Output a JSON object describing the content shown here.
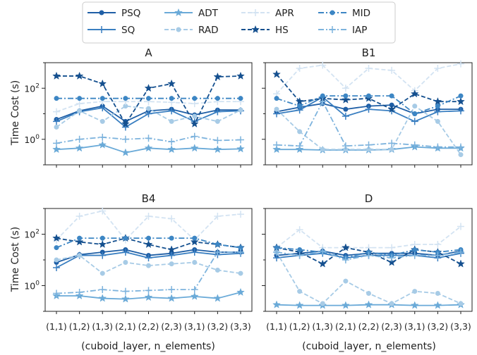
{
  "chart_data": {
    "type": "line",
    "yscale": "log",
    "ylim": [
      0.1,
      1000
    ],
    "y_tick_labels": [
      "10^0",
      "10^2"
    ],
    "ylabel": "Time Cost (s)",
    "xlabel": "(cuboid_layer, n_elements)",
    "categories": [
      "(1,1)",
      "(1,2)",
      "(1,3)",
      "(2,1)",
      "(2,2)",
      "(2,3)",
      "(3,1)",
      "(3,2)",
      "(3,3)"
    ],
    "legend_placement": "top-center",
    "legend": [
      "PSQ",
      "SQ",
      "ADT",
      "RAD",
      "APR",
      "HS",
      "MID",
      "IAP"
    ],
    "series_styles": [
      {
        "name": "PSQ",
        "color": "#1f5fa6",
        "dash": "solid",
        "marker": "circle"
      },
      {
        "name": "SQ",
        "color": "#3a7fc1",
        "dash": "solid",
        "marker": "plus"
      },
      {
        "name": "ADT",
        "color": "#6aaad8",
        "dash": "solid",
        "marker": "star"
      },
      {
        "name": "RAD",
        "color": "#a7cbe6",
        "dash": "dashed",
        "marker": "circle"
      },
      {
        "name": "APR",
        "color": "#d3e3f2",
        "dash": "dashed",
        "marker": "plus"
      },
      {
        "name": "HS",
        "color": "#15508f",
        "dash": "dashed",
        "marker": "star"
      },
      {
        "name": "MID",
        "color": "#3d86c4",
        "dash": "dashdot",
        "marker": "circle"
      },
      {
        "name": "IAP",
        "color": "#7db3dd",
        "dash": "dashdot",
        "marker": "plus"
      }
    ],
    "panels": [
      {
        "title": "A",
        "series": [
          {
            "name": "PSQ",
            "values": [
              6,
              13,
              20,
              5,
              13,
              15,
              9,
              14,
              14
            ]
          },
          {
            "name": "SQ",
            "values": [
              5,
              12,
              17,
              3,
              10,
              13,
              5,
              12,
              13
            ]
          },
          {
            "name": "ADT",
            "values": [
              0.4,
              0.45,
              0.6,
              0.3,
              0.45,
              0.4,
              0.45,
              0.4,
              0.42
            ]
          },
          {
            "name": "RAD",
            "values": [
              3,
              13,
              5,
              20,
              16,
              5,
              8,
              5,
              14
            ]
          },
          {
            "name": "APR",
            "values": [
              12,
              25,
              30,
              30,
              30,
              28,
              25,
              30,
              30
            ]
          },
          {
            "name": "HS",
            "values": [
              300,
              300,
              150,
              4,
              100,
              150,
              4,
              280,
              300
            ]
          },
          {
            "name": "MID",
            "values": [
              40,
              40,
              40,
              40,
              40,
              40,
              40,
              40,
              40
            ]
          },
          {
            "name": "IAP",
            "values": [
              0.7,
              1,
              1.2,
              1,
              1.1,
              0.8,
              1.3,
              0.9,
              0.95
            ]
          }
        ]
      },
      {
        "title": "B1",
        "series": [
          {
            "name": "PSQ",
            "values": [
              12,
              18,
              25,
              15,
              20,
              22,
              10,
              15,
              15
            ]
          },
          {
            "name": "SQ",
            "values": [
              10,
              14,
              45,
              8,
              15,
              13,
              5,
              12,
              13
            ]
          },
          {
            "name": "ADT",
            "values": [
              0.4,
              0.4,
              0.38,
              0.38,
              0.38,
              0.4,
              0.5,
              0.45,
              0.45
            ]
          },
          {
            "name": "RAD",
            "values": [
              15,
              2,
              0.4,
              0.4,
              0.4,
              0.4,
              20,
              5,
              0.25
            ]
          },
          {
            "name": "APR",
            "values": [
              60,
              600,
              800,
              100,
              600,
              500,
              80,
              600,
              900
            ]
          },
          {
            "name": "HS",
            "values": [
              350,
              30,
              40,
              35,
              40,
              15,
              60,
              30,
              30
            ]
          },
          {
            "name": "MID",
            "values": [
              40,
              20,
              50,
              50,
              50,
              50,
              10,
              20,
              50
            ]
          },
          {
            "name": "IAP",
            "values": [
              0.6,
              0.55,
              30,
              0.55,
              0.6,
              0.7,
              0.6,
              0.5,
              0.5
            ]
          }
        ]
      },
      {
        "title": "B4",
        "series": [
          {
            "name": "PSQ",
            "values": [
              8,
              16,
              20,
              25,
              15,
              18,
              25,
              20,
              20
            ]
          },
          {
            "name": "SQ",
            "values": [
              5,
              15,
              15,
              20,
              12,
              15,
              20,
              16,
              18
            ]
          },
          {
            "name": "ADT",
            "values": [
              0.4,
              0.4,
              0.32,
              0.3,
              0.35,
              0.32,
              0.38,
              0.32,
              0.55
            ]
          },
          {
            "name": "RAD",
            "values": [
              10,
              15,
              3,
              8,
              6,
              7,
              8,
              4,
              3
            ]
          },
          {
            "name": "APR",
            "values": [
              60,
              500,
              800,
              60,
              500,
              400,
              60,
              500,
              600
            ]
          },
          {
            "name": "HS",
            "values": [
              70,
              50,
              40,
              70,
              40,
              25,
              50,
              40,
              30
            ]
          },
          {
            "name": "MID",
            "values": [
              30,
              70,
              70,
              70,
              70,
              70,
              70,
              40,
              30
            ]
          },
          {
            "name": "IAP",
            "values": [
              0.5,
              0.55,
              0.7,
              0.6,
              0.65,
              0.7,
              0.7,
              20,
              20
            ]
          }
        ]
      },
      {
        "title": "D",
        "series": [
          {
            "name": "PSQ",
            "values": [
              15,
              18,
              22,
              15,
              18,
              18,
              18,
              15,
              22
            ]
          },
          {
            "name": "SQ",
            "values": [
              12,
              15,
              18,
              12,
              15,
              15,
              15,
              12,
              18
            ]
          },
          {
            "name": "ADT",
            "values": [
              0.18,
              0.17,
              0.17,
              0.17,
              0.18,
              0.18,
              0.17,
              0.17,
              0.18
            ]
          },
          {
            "name": "RAD",
            "values": [
              20,
              0.6,
              0.2,
              1.5,
              0.5,
              0.2,
              0.6,
              0.5,
              0.2
            ]
          },
          {
            "name": "APR",
            "values": [
              30,
              150,
              30,
              30,
              30,
              30,
              40,
              40,
              200
            ]
          },
          {
            "name": "HS",
            "values": [
              30,
              20,
              7,
              30,
              20,
              8,
              25,
              20,
              7
            ]
          },
          {
            "name": "MID",
            "values": [
              30,
              25,
              20,
              12,
              20,
              15,
              25,
              20,
              25
            ]
          },
          {
            "name": "IAP",
            "values": [
              20,
              15,
              22,
              10,
              15,
              12,
              15,
              15,
              20
            ]
          }
        ]
      }
    ]
  }
}
